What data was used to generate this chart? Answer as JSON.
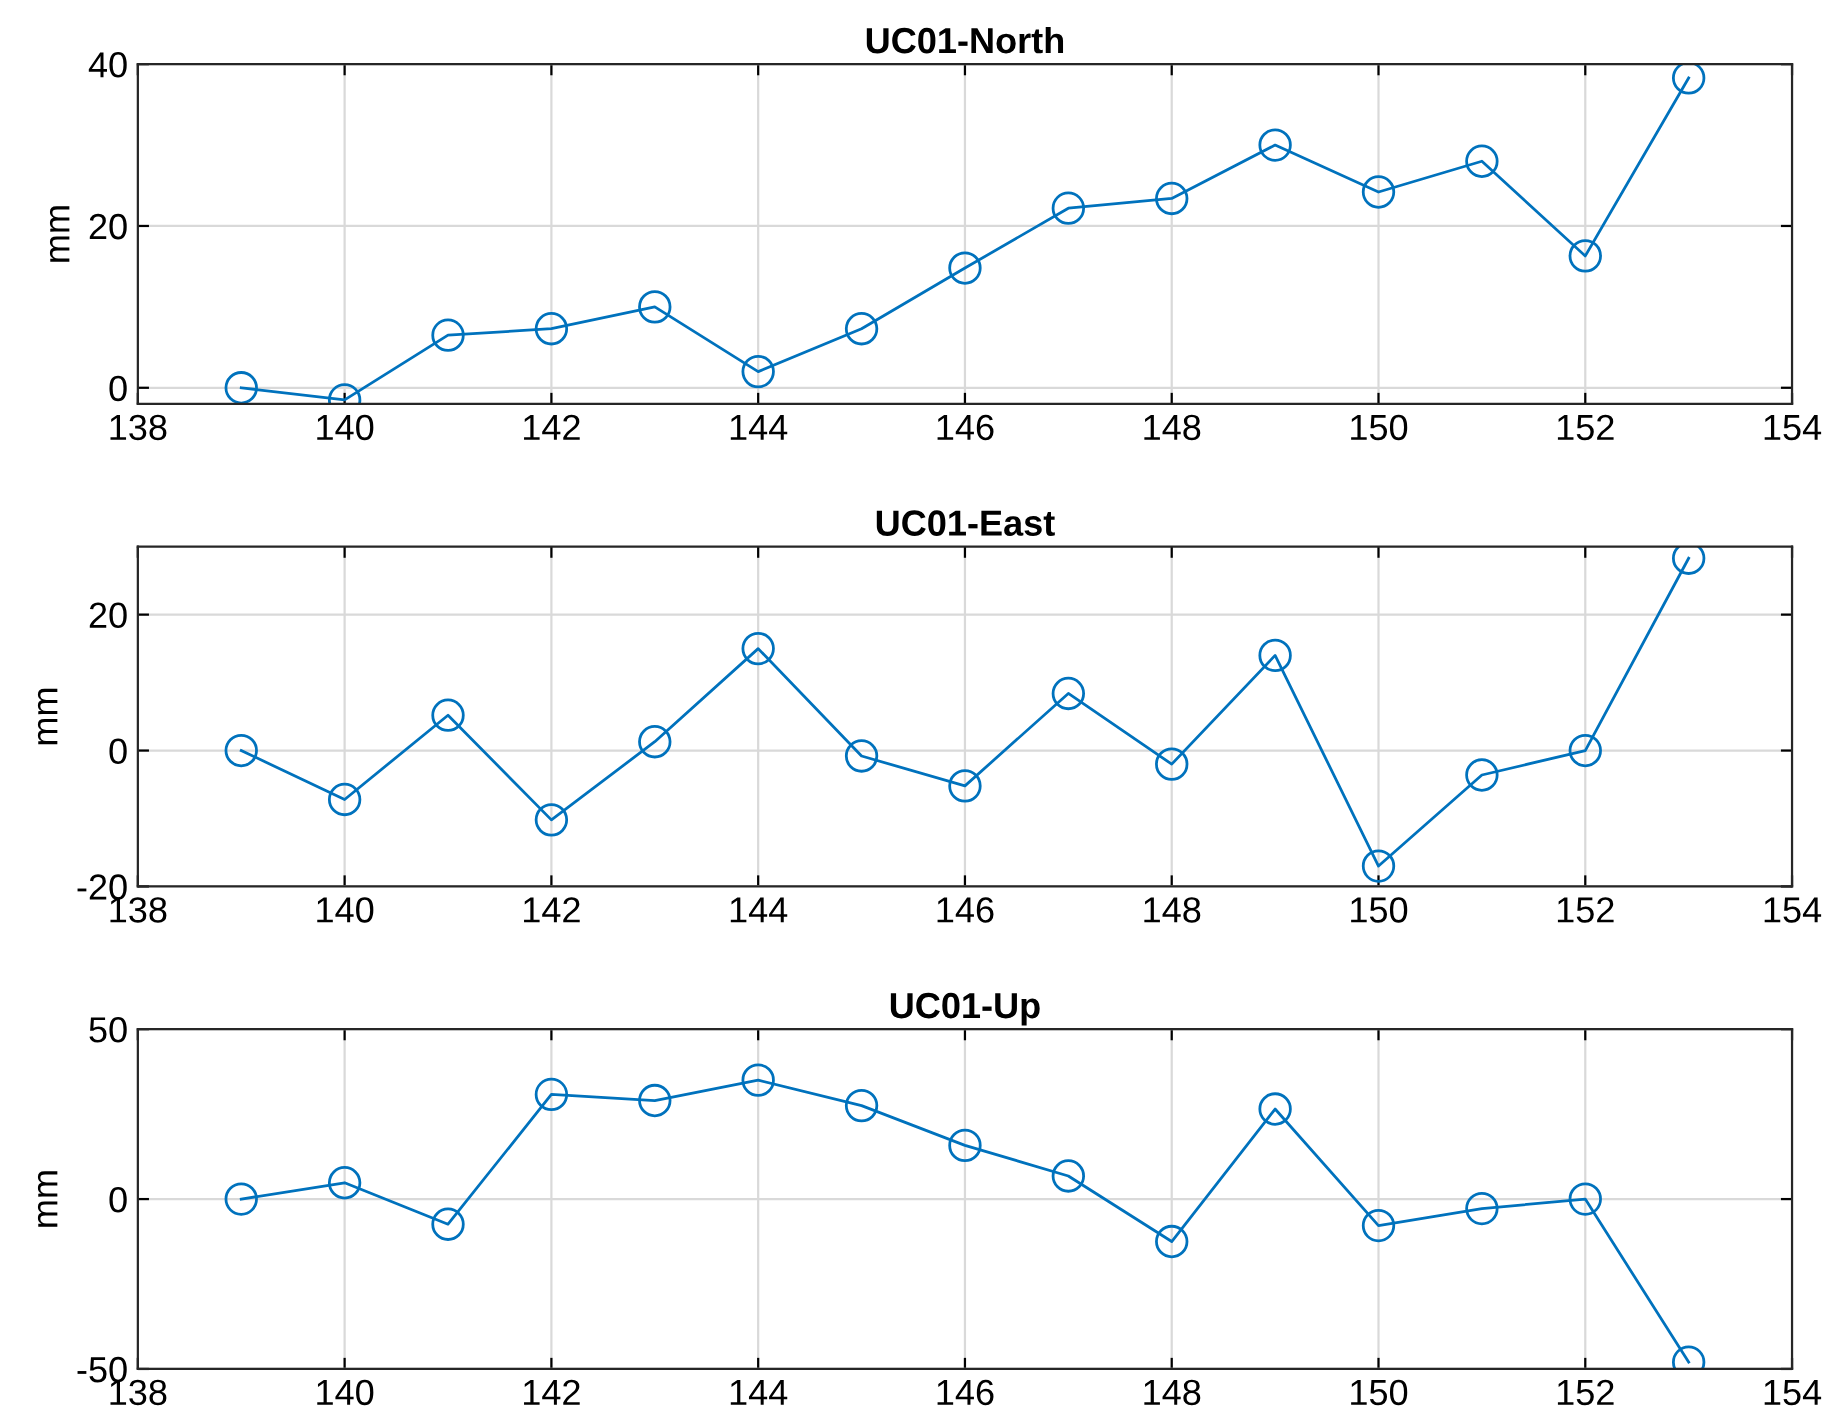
{
  "chart_data": [
    {
      "type": "line",
      "title": "UC01-North",
      "ylabel": "mm",
      "x": [
        139,
        140,
        141,
        142,
        143,
        144,
        145,
        146,
        147,
        148,
        149,
        150,
        151,
        152,
        153
      ],
      "series": [
        {
          "color": "#0072bd",
          "values": [
            0,
            -1.5,
            6.5,
            7.3,
            10,
            2,
            7.3,
            14.8,
            22.2,
            23.4,
            30,
            24.2,
            28,
            16.3,
            38.3
          ]
        }
      ],
      "xlim": [
        138,
        154
      ],
      "xticks": [
        138,
        140,
        142,
        144,
        146,
        148,
        150,
        152,
        154
      ],
      "ylim": [
        -2,
        40
      ],
      "yticks": [
        0,
        20,
        40
      ],
      "grid": true,
      "marker": "circle",
      "line_style": "solid"
    },
    {
      "type": "line",
      "title": "UC01-East",
      "ylabel": "mm",
      "x": [
        139,
        140,
        141,
        142,
        143,
        144,
        145,
        146,
        147,
        148,
        149,
        150,
        151,
        152,
        153
      ],
      "series": [
        {
          "color": "#0072bd",
          "values": [
            0,
            -7.2,
            5.2,
            -10.2,
            1.3,
            15,
            -0.8,
            -5.2,
            8.4,
            -2,
            14,
            -17,
            -3.6,
            0,
            28.3
          ]
        }
      ],
      "xlim": [
        138,
        154
      ],
      "xticks": [
        138,
        140,
        142,
        144,
        146,
        148,
        150,
        152,
        154
      ],
      "ylim": [
        -20,
        30
      ],
      "yticks": [
        -20,
        0,
        20
      ],
      "grid": true,
      "marker": "circle",
      "line_style": "solid"
    },
    {
      "type": "line",
      "title": "UC01-Up",
      "ylabel": "mm",
      "x": [
        139,
        140,
        141,
        142,
        143,
        144,
        145,
        146,
        147,
        148,
        149,
        150,
        151,
        152,
        153
      ],
      "series": [
        {
          "color": "#0072bd",
          "values": [
            0,
            4.8,
            -7.4,
            30.8,
            29,
            35,
            27.5,
            15.8,
            6.8,
            -12.5,
            26.5,
            -7.8,
            -2.8,
            0,
            -48
          ]
        }
      ],
      "xlim": [
        138,
        154
      ],
      "xticks": [
        138,
        140,
        142,
        144,
        146,
        148,
        150,
        152,
        154
      ],
      "ylim": [
        -50,
        50
      ],
      "yticks": [
        -50,
        0,
        50
      ],
      "grid": true,
      "marker": "circle",
      "line_style": "solid"
    }
  ]
}
